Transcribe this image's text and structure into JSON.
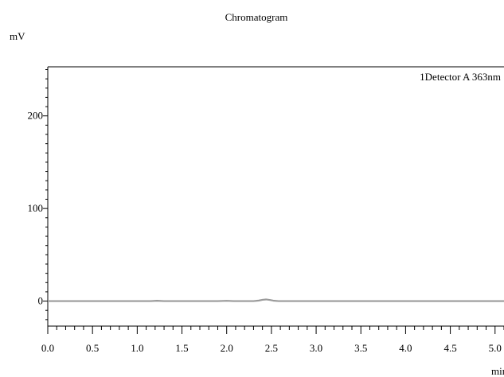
{
  "chart_data": {
    "type": "line",
    "title": "Chromatogram",
    "ylabel": "mV",
    "xlabel": "min",
    "legend_placement": "top-right",
    "xlim": [
      0.0,
      5.1
    ],
    "ylim": [
      -27,
      253
    ],
    "grid": false,
    "x_ticks": [
      {
        "value": 0.0,
        "label": "0.0"
      },
      {
        "value": 0.5,
        "label": "0.5"
      },
      {
        "value": 1.0,
        "label": "1.0"
      },
      {
        "value": 1.5,
        "label": "1.5"
      },
      {
        "value": 2.0,
        "label": "2.0"
      },
      {
        "value": 2.5,
        "label": "2.5"
      },
      {
        "value": 3.0,
        "label": "3.0"
      },
      {
        "value": 3.5,
        "label": "3.5"
      },
      {
        "value": 4.0,
        "label": "4.0"
      },
      {
        "value": 4.5,
        "label": "4.5"
      },
      {
        "value": 5.0,
        "label": "5.0"
      }
    ],
    "y_ticks": [
      {
        "value": 0,
        "label": "0"
      },
      {
        "value": 100,
        "label": "100"
      },
      {
        "value": 200,
        "label": "200"
      }
    ],
    "series": [
      {
        "name": "1Detector A 363nm",
        "color": "#9a9a9a",
        "x": [
          0.0,
          0.5,
          1.0,
          1.15,
          1.22,
          1.3,
          1.5,
          1.9,
          2.0,
          2.08,
          2.2,
          2.3,
          2.36,
          2.4,
          2.44,
          2.48,
          2.52,
          2.58,
          2.7,
          3.0,
          3.5,
          4.0,
          4.5,
          5.0,
          5.1
        ],
        "y": [
          0.0,
          0.0,
          0.0,
          0.0,
          0.4,
          0.0,
          0.0,
          0.0,
          0.3,
          0.0,
          0.0,
          0.0,
          0.6,
          1.4,
          1.8,
          1.3,
          0.5,
          0.0,
          0.0,
          0.0,
          0.0,
          0.0,
          0.0,
          0.0,
          0.0
        ]
      }
    ]
  }
}
